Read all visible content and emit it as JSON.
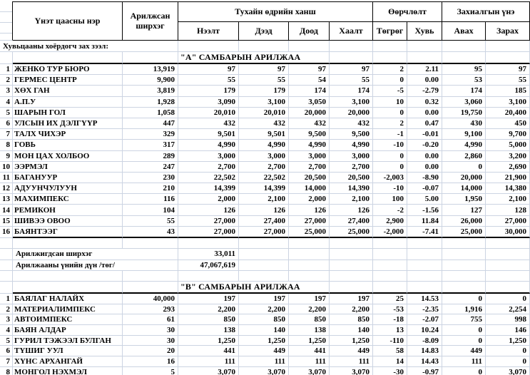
{
  "colors": {
    "grid": "#ccd4e2",
    "border": "#000000",
    "background": "#ffffff",
    "text": "#000000"
  },
  "header": {
    "col_name": "Үнэт цаасны нэр",
    "col_shares": "Арилжсан ширхэг",
    "group_price": "Тухайн өдрийн ханш",
    "group_change": "Өөрчлөлт",
    "group_order": "Захиалгын үнэ",
    "sub": [
      "Нээлт",
      "Дээд",
      "Доод",
      "Хаалт",
      "Төгрөг",
      "Хувь",
      "Авах",
      "Зарах"
    ]
  },
  "market_label": "Хувьцааны хоёрдогч зах зээл:",
  "board_a": {
    "title": "\"А\" САМБАРЫН АРИЛЖАА",
    "rows": [
      {
        "num": "1",
        "name": "ЖЕНКО ТУР БЮРО",
        "shares": "13,919",
        "open": "97",
        "high": "97",
        "low": "97",
        "close": "97",
        "chg": "2",
        "pct": "2.11",
        "buy": "95",
        "sell": "97"
      },
      {
        "num": "2",
        "name": "ГЕРМЕС ЦЕНТР",
        "shares": "9,900",
        "open": "55",
        "high": "55",
        "low": "54",
        "close": "55",
        "chg": "0",
        "pct": "0.00",
        "buy": "53",
        "sell": "55"
      },
      {
        "num": "3",
        "name": "ХӨХ ГАН",
        "shares": "3,819",
        "open": "179",
        "high": "179",
        "low": "174",
        "close": "174",
        "chg": "-5",
        "pct": "-2.79",
        "buy": "174",
        "sell": "185"
      },
      {
        "num": "4",
        "name": "А.П.У",
        "shares": "1,928",
        "open": "3,090",
        "high": "3,100",
        "low": "3,050",
        "close": "3,100",
        "chg": "10",
        "pct": "0.32",
        "buy": "3,060",
        "sell": "3,100"
      },
      {
        "num": "5",
        "name": "ШАРЫН ГОЛ",
        "shares": "1,058",
        "open": "20,010",
        "high": "20,010",
        "low": "20,000",
        "close": "20,000",
        "chg": "0",
        "pct": "0.00",
        "buy": "19,750",
        "sell": "20,400"
      },
      {
        "num": "6",
        "name": "УЛСЫН ИХ ДЭЛГҮҮР",
        "shares": "447",
        "open": "432",
        "high": "432",
        "low": "432",
        "close": "432",
        "chg": "2",
        "pct": "0.47",
        "buy": "430",
        "sell": "450"
      },
      {
        "num": "7",
        "name": "ТАЛХ ЧИХЭР",
        "shares": "329",
        "open": "9,501",
        "high": "9,501",
        "low": "9,500",
        "close": "9,500",
        "chg": "-1",
        "pct": "-0.01",
        "buy": "9,100",
        "sell": "9,700"
      },
      {
        "num": "8",
        "name": "ГОВЬ",
        "shares": "317",
        "open": "4,990",
        "high": "4,990",
        "low": "4,990",
        "close": "4,990",
        "chg": "-10",
        "pct": "-0.20",
        "buy": "4,990",
        "sell": "5,000"
      },
      {
        "num": "9",
        "name": "МОН ЦАХ ХОЛБОО",
        "shares": "289",
        "open": "3,000",
        "high": "3,000",
        "low": "3,000",
        "close": "3,000",
        "chg": "0",
        "pct": "0.00",
        "buy": "2,860",
        "sell": "3,200"
      },
      {
        "num": "10",
        "name": "ЭЭРМЭЛ",
        "shares": "247",
        "open": "2,700",
        "high": "2,700",
        "low": "2,700",
        "close": "2,700",
        "chg": "0",
        "pct": "0.00",
        "buy": "0",
        "sell": "2,690"
      },
      {
        "num": "11",
        "name": "БАГАНУУР",
        "shares": "230",
        "open": "22,502",
        "high": "22,502",
        "low": "20,500",
        "close": "20,500",
        "chg": "-2,003",
        "pct": "-8.90",
        "buy": "20,000",
        "sell": "21,900"
      },
      {
        "num": "12",
        "name": "АДУУНЧУЛУУН",
        "shares": "210",
        "open": "14,399",
        "high": "14,399",
        "low": "14,000",
        "close": "14,390",
        "chg": "-10",
        "pct": "-0.07",
        "buy": "14,000",
        "sell": "14,380"
      },
      {
        "num": "13",
        "name": "МАХИМПЕКС",
        "shares": "116",
        "open": "2,000",
        "high": "2,100",
        "low": "2,000",
        "close": "2,100",
        "chg": "100",
        "pct": "5.00",
        "buy": "1,950",
        "sell": "2,100"
      },
      {
        "num": "14",
        "name": "РЕМИКОН",
        "shares": "104",
        "open": "126",
        "high": "126",
        "low": "126",
        "close": "126",
        "chg": "-2",
        "pct": "-1.56",
        "buy": "127",
        "sell": "128"
      },
      {
        "num": "15",
        "name": "ШИВЭЭ ОВОО",
        "shares": "55",
        "open": "27,000",
        "high": "27,400",
        "low": "27,000",
        "close": "27,400",
        "chg": "2,900",
        "pct": "11.84",
        "buy": "26,000",
        "sell": "27,000"
      },
      {
        "num": "16",
        "name": "БАЯНТЭЭГ",
        "shares": "43",
        "open": "27,000",
        "high": "27,000",
        "low": "25,000",
        "close": "25,000",
        "chg": "-2,000",
        "pct": "-7.41",
        "buy": "25,000",
        "sell": "30,000"
      }
    ]
  },
  "summary": {
    "traded_label": "Арилжигдсан ширхэг",
    "traded_value": "33,011",
    "value_label": "Арилжааны үнийн дүн /төг/",
    "value_value": "47,067,619"
  },
  "board_b": {
    "title": "\"В\" САМБАРЫН АРИЛЖАА",
    "rows": [
      {
        "num": "1",
        "name": "БАЯЛАГ НАЛАЙХ",
        "shares": "40,000",
        "open": "197",
        "high": "197",
        "low": "197",
        "close": "197",
        "chg": "25",
        "pct": "14.53",
        "buy": "0",
        "sell": "0"
      },
      {
        "num": "2",
        "name": "МАТЕРИАЛИМПЕКС",
        "shares": "293",
        "open": "2,200",
        "high": "2,200",
        "low": "2,200",
        "close": "2,200",
        "chg": "-53",
        "pct": "-2.35",
        "buy": "1,916",
        "sell": "2,254"
      },
      {
        "num": "3",
        "name": "АВТОИМПЕКС",
        "shares": "61",
        "open": "850",
        "high": "850",
        "low": "850",
        "close": "850",
        "chg": "-18",
        "pct": "-2.07",
        "buy": "755",
        "sell": "998"
      },
      {
        "num": "4",
        "name": "БАЯН АЛДАР",
        "shares": "30",
        "open": "138",
        "high": "140",
        "low": "138",
        "close": "140",
        "chg": "13",
        "pct": "10.24",
        "buy": "0",
        "sell": "146"
      },
      {
        "num": "5",
        "name": "ГУРИЛ ТЭЖЭЭЛ БУЛГАН",
        "shares": "30",
        "open": "1,250",
        "high": "1,250",
        "low": "1,250",
        "close": "1,250",
        "chg": "-110",
        "pct": "-8.09",
        "buy": "0",
        "sell": "1,250"
      },
      {
        "num": "6",
        "name": "ТҮШИГ УУЛ",
        "shares": "20",
        "open": "441",
        "high": "449",
        "low": "441",
        "close": "449",
        "chg": "58",
        "pct": "14.83",
        "buy": "449",
        "sell": "0"
      },
      {
        "num": "7",
        "name": "ХҮНС АРХАНГАЙ",
        "shares": "16",
        "open": "111",
        "high": "111",
        "low": "111",
        "close": "111",
        "chg": "14",
        "pct": "14.43",
        "buy": "111",
        "sell": "0"
      },
      {
        "num": "8",
        "name": "МОНГОЛ НЭХМЭЛ",
        "shares": "5",
        "open": "3,070",
        "high": "3,070",
        "low": "3,070",
        "close": "3,070",
        "chg": "-30",
        "pct": "-0.97",
        "buy": "0",
        "sell": "3,070"
      }
    ]
  }
}
